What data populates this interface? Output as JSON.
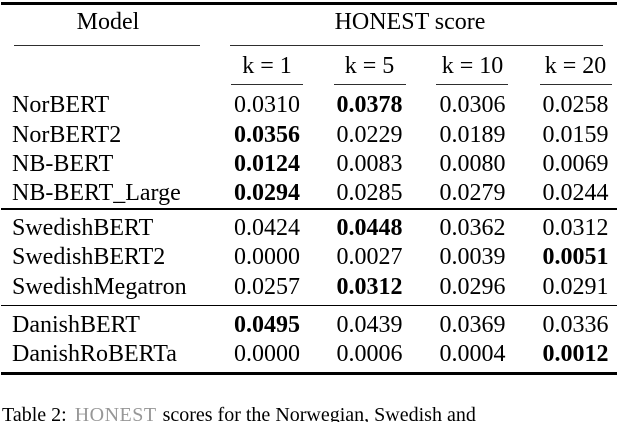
{
  "page": {
    "background": "#ffffff",
    "text_color": "#000000",
    "rule_color": "#000000",
    "thin_rule_color": "#2e2e2e",
    "caption_honest_color": "#979797"
  },
  "table": {
    "header": {
      "model_col": "Model",
      "score_group": "HONEST score",
      "k_cols": [
        "k = 1",
        "k = 5",
        "k = 10",
        "k = 20"
      ]
    },
    "groups": [
      {
        "rows": [
          {
            "model": "NorBERT",
            "values": [
              "0.0310",
              "0.0378",
              "0.0306",
              "0.0258"
            ],
            "bold": [
              false,
              true,
              false,
              false
            ]
          },
          {
            "model": "NorBERT2",
            "values": [
              "0.0356",
              "0.0229",
              "0.0189",
              "0.0159"
            ],
            "bold": [
              true,
              false,
              false,
              false
            ]
          },
          {
            "model": "NB-BERT",
            "values": [
              "0.0124",
              "0.0083",
              "0.0080",
              "0.0069"
            ],
            "bold": [
              true,
              false,
              false,
              false
            ]
          },
          {
            "model": "NB-BERT_Large",
            "values": [
              "0.0294",
              "0.0285",
              "0.0279",
              "0.0244"
            ],
            "bold": [
              true,
              false,
              false,
              false
            ]
          }
        ]
      },
      {
        "rows": [
          {
            "model": "SwedishBERT",
            "values": [
              "0.0424",
              "0.0448",
              "0.0362",
              "0.0312"
            ],
            "bold": [
              false,
              true,
              false,
              false
            ]
          },
          {
            "model": "SwedishBERT2",
            "values": [
              "0.0000",
              "0.0027",
              "0.0039",
              "0.0051"
            ],
            "bold": [
              false,
              false,
              false,
              true
            ]
          },
          {
            "model": "SwedishMegatron",
            "values": [
              "0.0257",
              "0.0312",
              "0.0296",
              "0.0291"
            ],
            "bold": [
              false,
              true,
              false,
              false
            ]
          }
        ]
      },
      {
        "rows": [
          {
            "model": "DanishBERT",
            "values": [
              "0.0495",
              "0.0439",
              "0.0369",
              "0.0336"
            ],
            "bold": [
              true,
              false,
              false,
              false
            ]
          },
          {
            "model": "DanishRoBERTa",
            "values": [
              "0.0000",
              "0.0006",
              "0.0004",
              "0.0012"
            ],
            "bold": [
              false,
              false,
              false,
              true
            ]
          }
        ]
      }
    ]
  },
  "caption": {
    "label": "Table 2:",
    "honest_word": "HONEST",
    "text": "scores for the Norwegian, Swedish and"
  }
}
